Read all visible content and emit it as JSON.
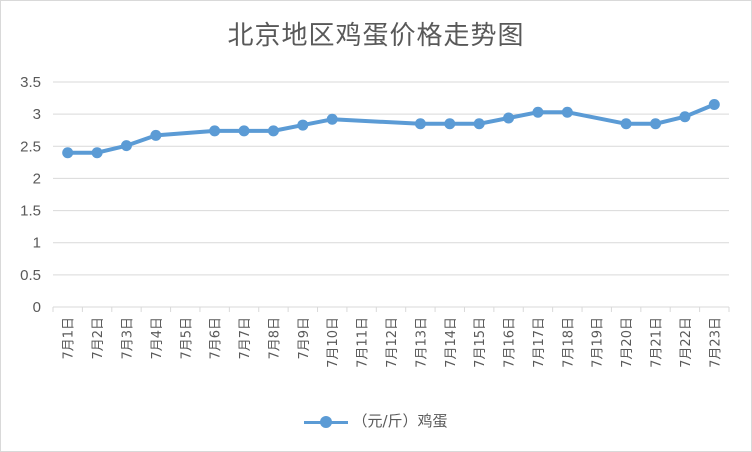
{
  "chart_data": {
    "type": "line",
    "title": "北京地区鸡蛋价格走势图",
    "categories": [
      "7月1日",
      "7月2日",
      "7月3日",
      "7月4日",
      "7月5日",
      "7月6日",
      "7月7日",
      "7月8日",
      "7月9日",
      "7月10日",
      "7月11日",
      "7月12日",
      "7月13日",
      "7月14日",
      "7月15日",
      "7月16日",
      "7月17日",
      "7月18日",
      "7月19日",
      "7月20日",
      "7月21日",
      "7月22日",
      "7月23日"
    ],
    "series": [
      {
        "name": "（元/斤）鸡蛋",
        "color": "#5b9bd5",
        "values": [
          2.4,
          2.4,
          2.51,
          2.67,
          null,
          2.74,
          2.74,
          2.74,
          2.83,
          2.92,
          null,
          null,
          2.85,
          2.85,
          2.85,
          2.94,
          3.03,
          3.03,
          null,
          2.85,
          2.85,
          2.96,
          3.15
        ]
      }
    ],
    "yticks": [
      "0",
      "0.5",
      "1",
      "1.5",
      "2",
      "2.5",
      "3",
      "3.5"
    ],
    "ylim": [
      0,
      3.5
    ],
    "xlabel": "",
    "ylabel": "",
    "grid": true,
    "legend": "bottom"
  }
}
